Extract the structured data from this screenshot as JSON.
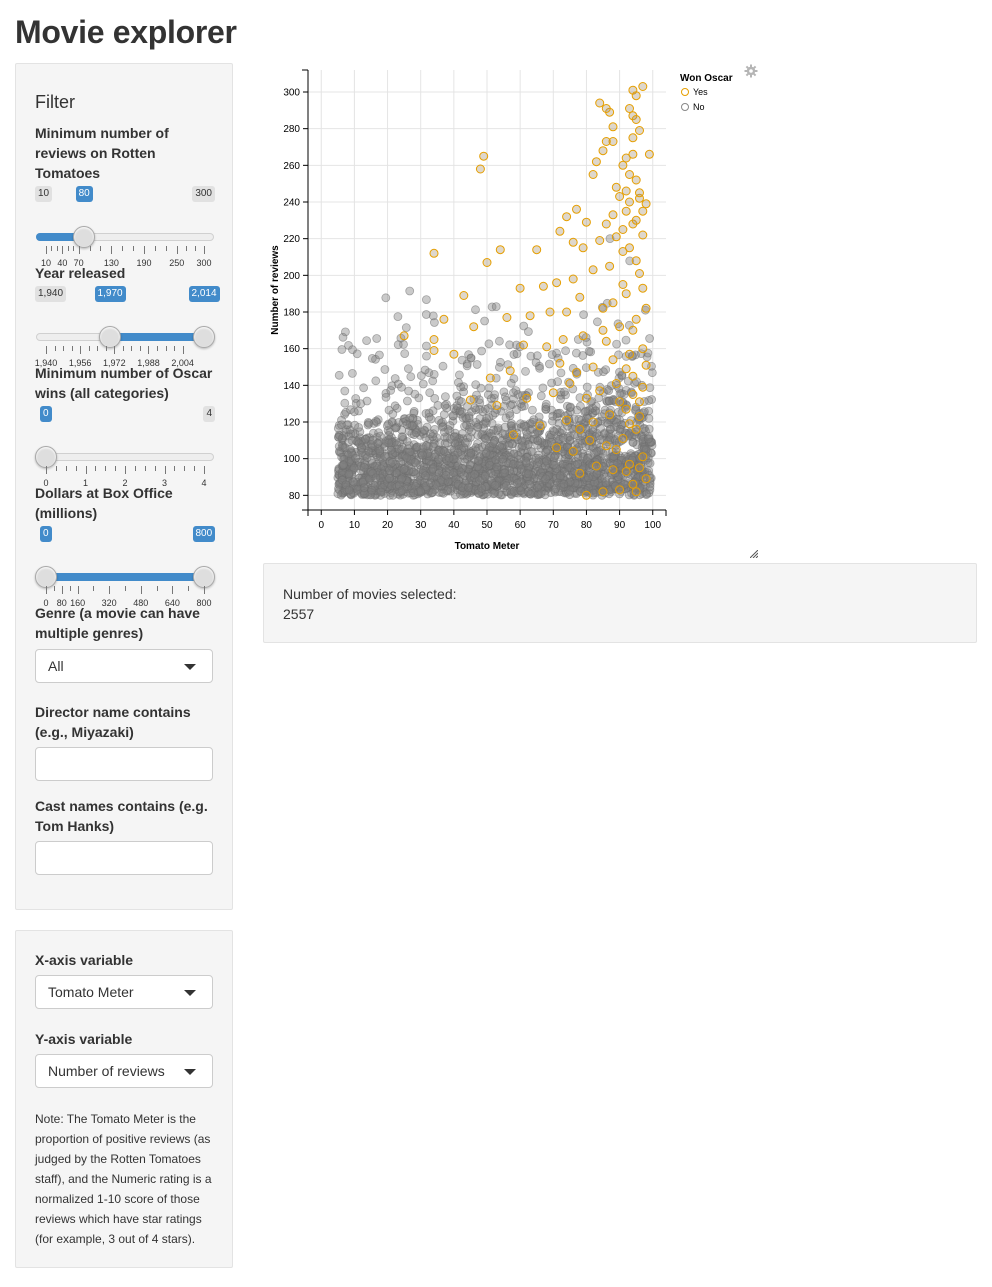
{
  "app": {
    "title": "Movie explorer"
  },
  "filter": {
    "heading": "Filter",
    "reviews": {
      "label": "Minimum number of reviews on Rotten Tomatoes",
      "min": 10,
      "max": 300,
      "value": 80,
      "min_label": "10",
      "max_label": "300",
      "value_label": "80",
      "ticks": [
        "10",
        "40",
        "70",
        "130",
        "190",
        "250",
        "300"
      ]
    },
    "year": {
      "label": "Year released",
      "min": 1940,
      "max": 2014,
      "from": 1970,
      "to": 2014,
      "min_label": "1,940",
      "from_label": "1,970",
      "to_label": "2,014",
      "ticks": [
        "1,940",
        "1,956",
        "1,972",
        "1,988",
        "2,004"
      ]
    },
    "oscars": {
      "label": "Minimum number of Oscar wins (all categories)",
      "min": 0,
      "max": 4,
      "value": 0,
      "value_label": "0",
      "max_label": "4",
      "ticks": [
        "0",
        "1",
        "2",
        "3",
        "4"
      ]
    },
    "boxoffice": {
      "label": "Dollars at Box Office (millions)",
      "min": 0,
      "max": 800,
      "from": 0,
      "to": 800,
      "from_label": "0",
      "to_label": "800",
      "ticks": [
        "0",
        "80",
        "160",
        "320",
        "480",
        "640",
        "800"
      ]
    },
    "genre": {
      "label": "Genre (a movie can have multiple genres)",
      "value": "All"
    },
    "director": {
      "label": "Director name contains (e.g., Miyazaki)",
      "value": ""
    },
    "cast": {
      "label": "Cast names contains (e.g. Tom Hanks)",
      "value": ""
    }
  },
  "axes": {
    "x_label": "X-axis variable",
    "x_value": "Tomato Meter",
    "y_label": "Y-axis variable",
    "y_value": "Number of reviews",
    "note": "Note: The Tomato Meter is the proportion of positive reviews (as judged by the Rotten Tomatoes staff), and the Numeric rating is a normalized 1-10 score of those reviews which have star ratings (for example, 3 out of 4 stars)."
  },
  "info": {
    "selected_label": "Number of movies selected:",
    "selected_count": "2557"
  },
  "colors": {
    "accent": "#428bca",
    "oscar_yes": "#e69f00",
    "oscar_no": "#888888"
  },
  "icons": {
    "settings": "gear-icon",
    "resize": "resize-grip-icon",
    "dropdown": "caret-down-icon"
  },
  "chart_data": {
    "type": "scatter",
    "xlabel": "Tomato Meter",
    "ylabel": "Number of reviews",
    "xlim": [
      -4,
      104
    ],
    "ylim": [
      72,
      312
    ],
    "x_ticks": [
      0,
      10,
      20,
      30,
      40,
      50,
      60,
      70,
      80,
      90,
      100
    ],
    "y_ticks": [
      80,
      100,
      120,
      140,
      160,
      180,
      200,
      220,
      240,
      260,
      280,
      300
    ],
    "grid": true,
    "legend": {
      "title": "Won Oscar",
      "position": "top-right",
      "entries": [
        "Yes",
        "No"
      ]
    },
    "series": [
      {
        "name": "Yes",
        "color": "#e69f00",
        "points": [
          [
            84,
            294
          ],
          [
            87,
            289
          ],
          [
            94,
            301
          ],
          [
            97,
            303
          ],
          [
            95,
            298
          ],
          [
            93,
            291
          ],
          [
            94,
            287
          ],
          [
            95,
            285
          ],
          [
            96,
            279
          ],
          [
            99,
            266
          ],
          [
            94,
            266
          ],
          [
            92,
            264
          ],
          [
            88,
            273
          ],
          [
            86,
            273
          ],
          [
            85,
            268
          ],
          [
            83,
            262
          ],
          [
            49,
            265
          ],
          [
            48,
            258
          ],
          [
            93,
            255
          ],
          [
            95,
            252
          ],
          [
            92,
            246
          ],
          [
            90,
            243
          ],
          [
            96,
            242
          ],
          [
            98,
            239
          ],
          [
            93,
            240
          ],
          [
            88,
            233
          ],
          [
            86,
            228
          ],
          [
            80,
            229
          ],
          [
            77,
            236
          ],
          [
            74,
            232
          ],
          [
            72,
            224
          ],
          [
            94,
            228
          ],
          [
            97,
            222
          ],
          [
            89,
            221
          ],
          [
            84,
            219
          ],
          [
            76,
            218
          ],
          [
            79,
            215
          ],
          [
            65,
            214
          ],
          [
            54,
            214
          ],
          [
            50,
            207
          ],
          [
            34,
            212
          ],
          [
            91,
            213
          ],
          [
            95,
            208
          ],
          [
            87,
            205
          ],
          [
            82,
            203
          ],
          [
            76,
            198
          ],
          [
            71,
            196
          ],
          [
            67,
            194
          ],
          [
            60,
            193
          ],
          [
            97,
            193
          ],
          [
            92,
            190
          ],
          [
            88,
            185
          ],
          [
            85,
            182
          ],
          [
            78,
            188
          ],
          [
            74,
            180
          ],
          [
            69,
            180
          ],
          [
            63,
            178
          ],
          [
            56,
            177
          ],
          [
            43,
            189
          ],
          [
            37,
            176
          ],
          [
            95,
            176
          ],
          [
            90,
            172
          ],
          [
            85,
            170
          ],
          [
            79,
            167
          ],
          [
            73,
            165
          ],
          [
            68,
            161
          ],
          [
            61,
            162
          ],
          [
            46,
            172
          ],
          [
            34,
            165
          ],
          [
            25,
            167
          ],
          [
            97,
            160
          ],
          [
            93,
            157
          ],
          [
            88,
            154
          ],
          [
            82,
            150
          ],
          [
            77,
            147
          ],
          [
            72,
            152
          ],
          [
            57,
            148
          ],
          [
            51,
            144
          ],
          [
            40,
            157
          ],
          [
            34,
            159
          ],
          [
            98,
            151
          ],
          [
            94,
            145
          ],
          [
            89,
            141
          ],
          [
            84,
            137
          ],
          [
            80,
            133
          ],
          [
            75,
            141
          ],
          [
            70,
            136
          ],
          [
            62,
            133
          ],
          [
            53,
            129
          ],
          [
            45,
            132
          ],
          [
            96,
            131
          ],
          [
            92,
            127
          ],
          [
            87,
            124
          ],
          [
            82,
            120
          ],
          [
            78,
            116
          ],
          [
            74,
            121
          ],
          [
            66,
            118
          ],
          [
            58,
            113
          ],
          [
            95,
            116
          ],
          [
            91,
            111
          ],
          [
            86,
            107
          ],
          [
            81,
            110
          ],
          [
            76,
            104
          ],
          [
            71,
            106
          ],
          [
            97,
            101
          ],
          [
            93,
            97
          ],
          [
            88,
            94
          ],
          [
            83,
            96
          ],
          [
            78,
            92
          ],
          [
            98,
            89
          ],
          [
            94,
            86
          ],
          [
            90,
            83
          ],
          [
            85,
            82
          ],
          [
            80,
            80
          ],
          [
            95,
            82
          ],
          [
            92,
            93
          ],
          [
            96,
            95
          ],
          [
            89,
            105
          ],
          [
            93,
            119
          ],
          [
            96,
            123
          ],
          [
            90,
            131
          ],
          [
            94,
            135
          ],
          [
            97,
            139
          ],
          [
            92,
            149
          ],
          [
            86,
            164
          ],
          [
            94,
            170
          ],
          [
            98,
            182
          ],
          [
            91,
            195
          ],
          [
            96,
            201
          ],
          [
            93,
            215
          ],
          [
            91,
            225
          ],
          [
            95,
            230
          ],
          [
            97,
            235
          ],
          [
            92,
            235
          ],
          [
            96,
            245
          ],
          [
            89,
            248
          ],
          [
            82,
            255
          ],
          [
            91,
            260
          ],
          [
            94,
            275
          ],
          [
            88,
            281
          ],
          [
            86,
            291
          ]
        ]
      },
      {
        "name": "No",
        "color": "#888888",
        "count": 2418
      }
    ]
  }
}
